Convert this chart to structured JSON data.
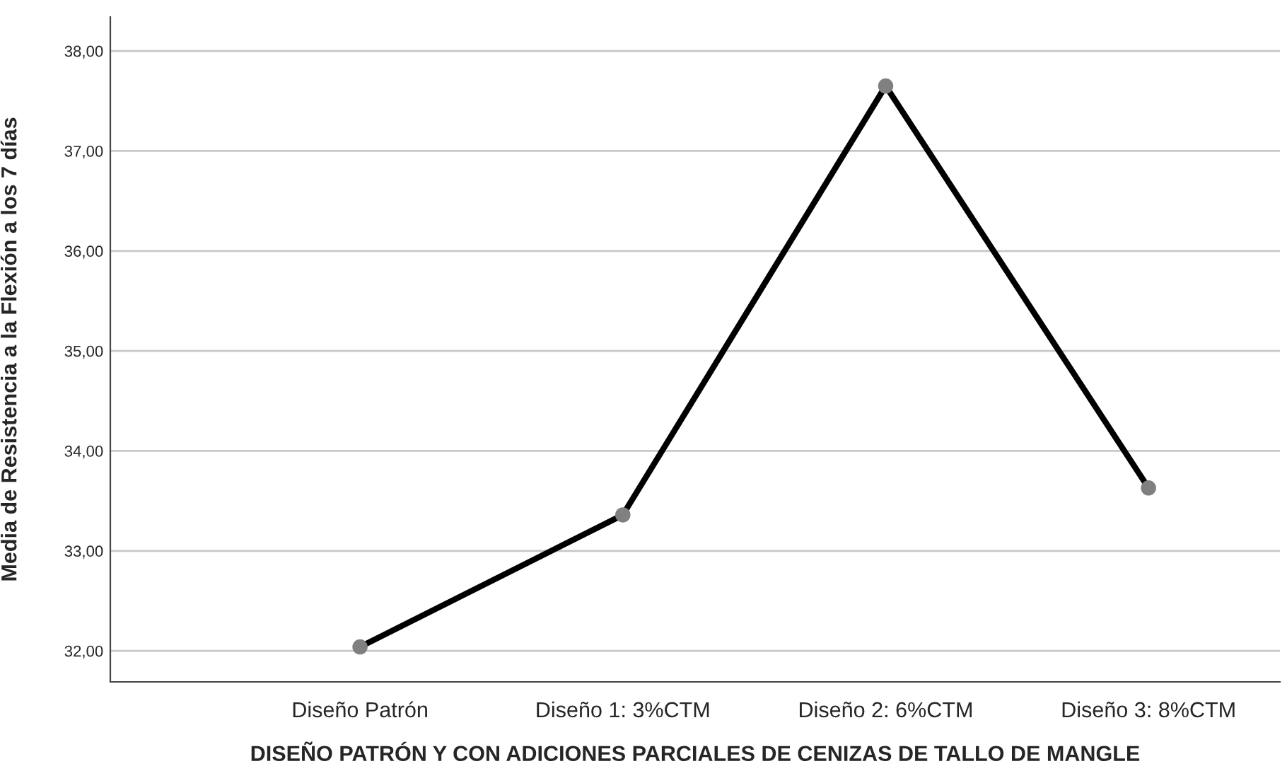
{
  "chart_data": {
    "type": "line",
    "xlabel": "DISEÑO PATRÓN Y CON ADICIONES PARCIALES DE CENIZAS DE TALLO DE MANGLE",
    "ylabel": "Media de Resistencia a la Flexión a los 7 días",
    "categories": [
      "Diseño Patrón",
      "Diseño 1: 3%CTM",
      "Diseño 2: 6%CTM",
      "Diseño 3: 8%CTM"
    ],
    "series": [
      {
        "color": "#000000",
        "values": [
          32.04,
          33.36,
          37.65,
          33.63
        ]
      }
    ],
    "ylim": [
      31.69,
      38.34
    ],
    "yticks": [
      {
        "value": 32,
        "label": "32,00"
      },
      {
        "value": 33,
        "label": "33,00"
      },
      {
        "value": 34,
        "label": "34,00"
      },
      {
        "value": 35,
        "label": "35,00"
      },
      {
        "value": 36,
        "label": "36,00"
      },
      {
        "value": 37,
        "label": "37,00"
      },
      {
        "value": 38,
        "label": "38,00"
      }
    ],
    "grid": "y",
    "marker": "circle",
    "line_style": "solid",
    "legend": false
  }
}
